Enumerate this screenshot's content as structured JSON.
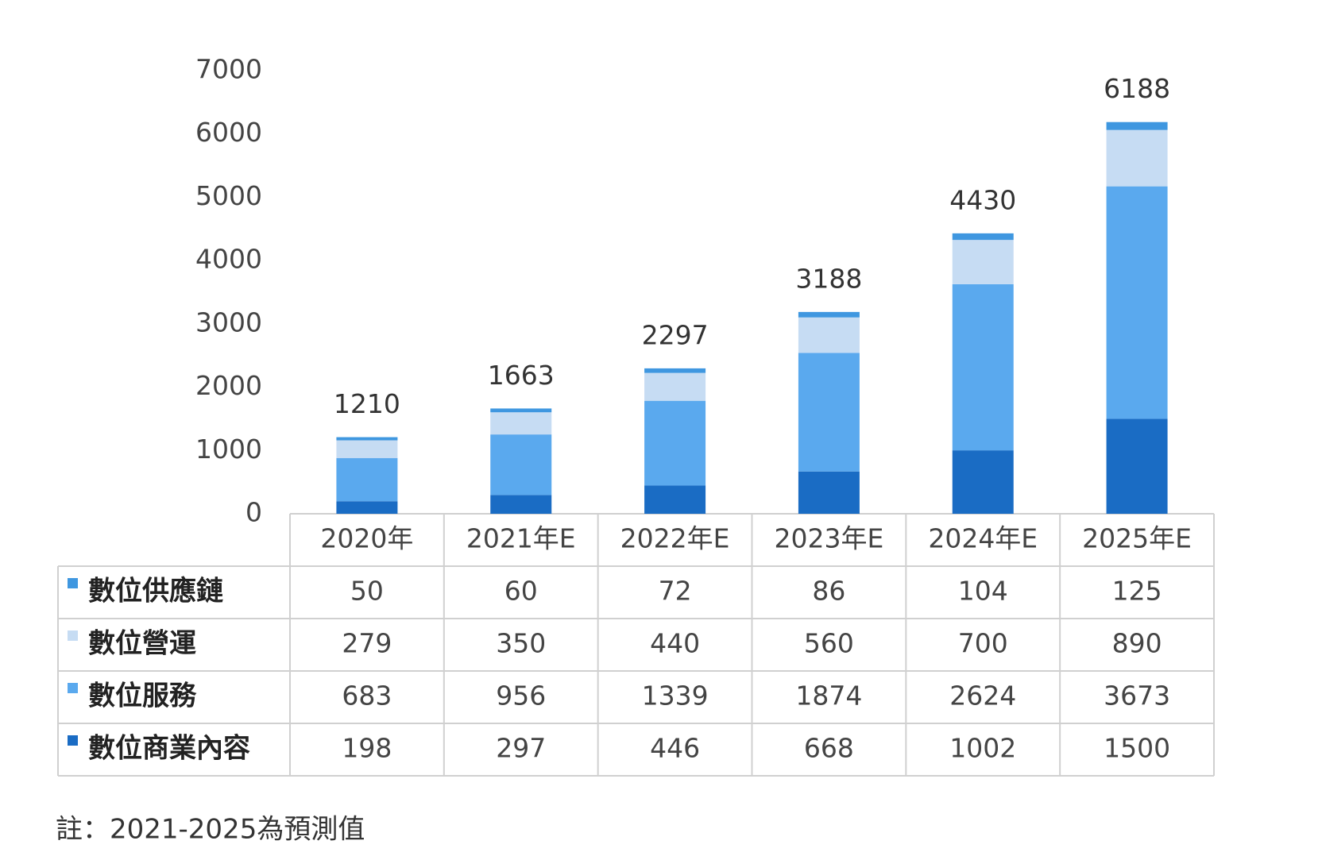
{
  "chart_data": {
    "type": "stacked-bar",
    "categories": [
      "2020年",
      "2021年E",
      "2022年E",
      "2023年E",
      "2024年E",
      "2025年E"
    ],
    "series": [
      {
        "name": "數位供應鏈",
        "color": "#3f97e0",
        "values": [
          50,
          60,
          72,
          86,
          104,
          125
        ]
      },
      {
        "name": "數位營運",
        "color": "#c6dcf3",
        "values": [
          279,
          350,
          440,
          560,
          700,
          890
        ]
      },
      {
        "name": "數位服務",
        "color": "#5aa9ee",
        "values": [
          683,
          956,
          1339,
          1874,
          2624,
          3673
        ]
      },
      {
        "name": "數位商業內容",
        "color": "#1a6cc4",
        "values": [
          198,
          297,
          446,
          668,
          1002,
          1500
        ]
      }
    ],
    "totals": [
      1210,
      1663,
      2297,
      3188,
      4430,
      6188
    ],
    "ylim": [
      0,
      7000
    ],
    "yticks": [
      0,
      1000,
      2000,
      3000,
      4000,
      5000,
      6000,
      7000
    ],
    "note": "註：2021-2025為預測值"
  }
}
